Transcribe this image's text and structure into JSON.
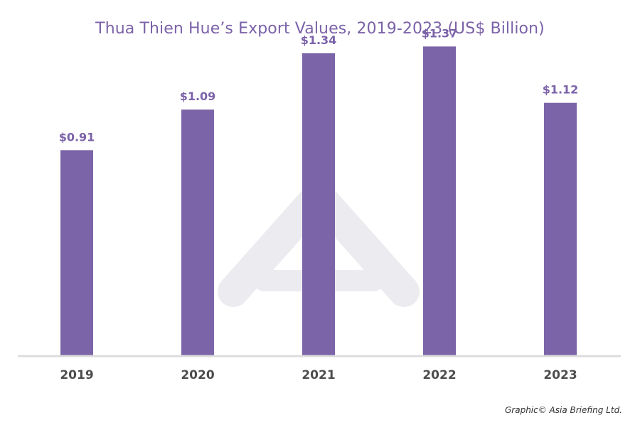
{
  "colors": {
    "bar": "#7b64a8",
    "title": "#7b62a8",
    "value_label": "#7b62a8",
    "tick_label": "#4d4d4d",
    "baseline": "#dcdcdc",
    "watermark": "#ececf0"
  },
  "chart_data": {
    "type": "bar",
    "title": "Thua Thien Hue’s Export Values, 2019-2023 (US$ Billion)",
    "categories": [
      "2019",
      "2020",
      "2021",
      "2022",
      "2023"
    ],
    "values": [
      0.91,
      1.09,
      1.34,
      1.37,
      1.12
    ],
    "value_labels": [
      "$0.91",
      "$1.09",
      "$1.34",
      "$1.37",
      "$1.12"
    ],
    "xlabel": "",
    "ylabel": "",
    "ylim": [
      0,
      1.45
    ],
    "grid": false,
    "legend": "none"
  },
  "footer": {
    "credit": "Graphic© Asia Briefing Ltd."
  }
}
